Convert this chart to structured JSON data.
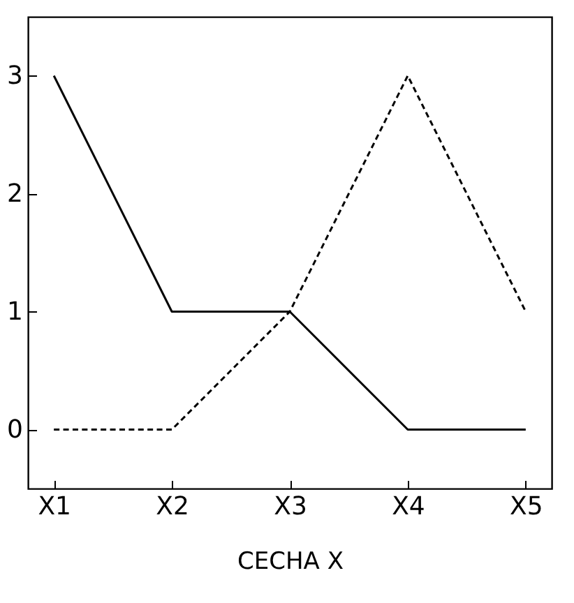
{
  "chart_data": {
    "type": "line",
    "xlabel": "CECHA X",
    "categories": [
      "X1",
      "X2",
      "X3",
      "X4",
      "X5"
    ],
    "series": [
      {
        "color": "#000000",
        "line_style": "solid",
        "values": [
          3,
          1,
          1,
          0,
          0
        ]
      },
      {
        "color": "#000000",
        "line_style": "dashed",
        "values": [
          0,
          0,
          1,
          3,
          1
        ]
      }
    ],
    "ylim": [
      -0.5,
      3.5
    ],
    "yticks": [
      0,
      1,
      2,
      3
    ],
    "grid": false,
    "marker": "none"
  }
}
